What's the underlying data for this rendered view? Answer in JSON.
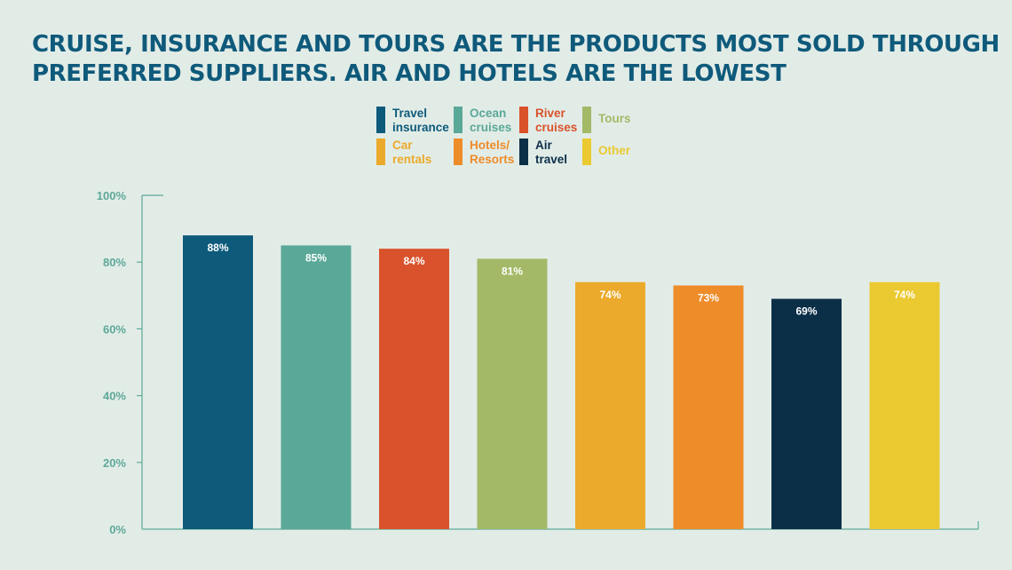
{
  "title_lines": [
    "CRUISE, INSURANCE AND TOURS ARE THE PRODUCTS MOST SOLD THROUGH",
    "PREFERRED SUPPLIERS. AIR AND HOTELS ARE THE LOWEST"
  ],
  "colors": {
    "background": "#e2ece7",
    "title": "#0f5a7b",
    "axis": "#5ea898",
    "data_label": "#ffffff"
  },
  "chart_data": {
    "type": "bar",
    "title": "CRUISE, INSURANCE AND TOURS ARE THE PRODUCTS MOST SOLD THROUGH PREFERRED SUPPLIERS. AIR AND HOTELS ARE THE LOWEST",
    "xlabel": "",
    "ylabel": "",
    "ylim": [
      0,
      100
    ],
    "yticks": [
      "0%",
      "20%",
      "40%",
      "60%",
      "80%",
      "100%"
    ],
    "ytick_values": [
      0,
      20,
      40,
      60,
      80,
      100
    ],
    "grid": false,
    "legend_position": "top-center",
    "categories": [
      "Travel insurance",
      "Ocean cruises",
      "River cruises",
      "Tours",
      "Car rentals",
      "Hotels/ Resorts",
      "Air travel",
      "Other"
    ],
    "legend_labels": [
      "Travel\ninsurance",
      "Ocean\ncruises",
      "River\ncruises",
      "Tours",
      "Car\nrentals",
      "Hotels/\nResorts",
      "Air\ntravel",
      "Other"
    ],
    "values": [
      88,
      85,
      84,
      81,
      74,
      73,
      69,
      74
    ],
    "data_labels": [
      "88%",
      "85%",
      "84%",
      "81%",
      "74%",
      "73%",
      "69%",
      "74%"
    ],
    "colors": [
      "#0d5a7a",
      "#5aa898",
      "#d9522b",
      "#a3b967",
      "#ebaa2b",
      "#ee8c2a",
      "#0c2f48",
      "#ebc931"
    ]
  }
}
